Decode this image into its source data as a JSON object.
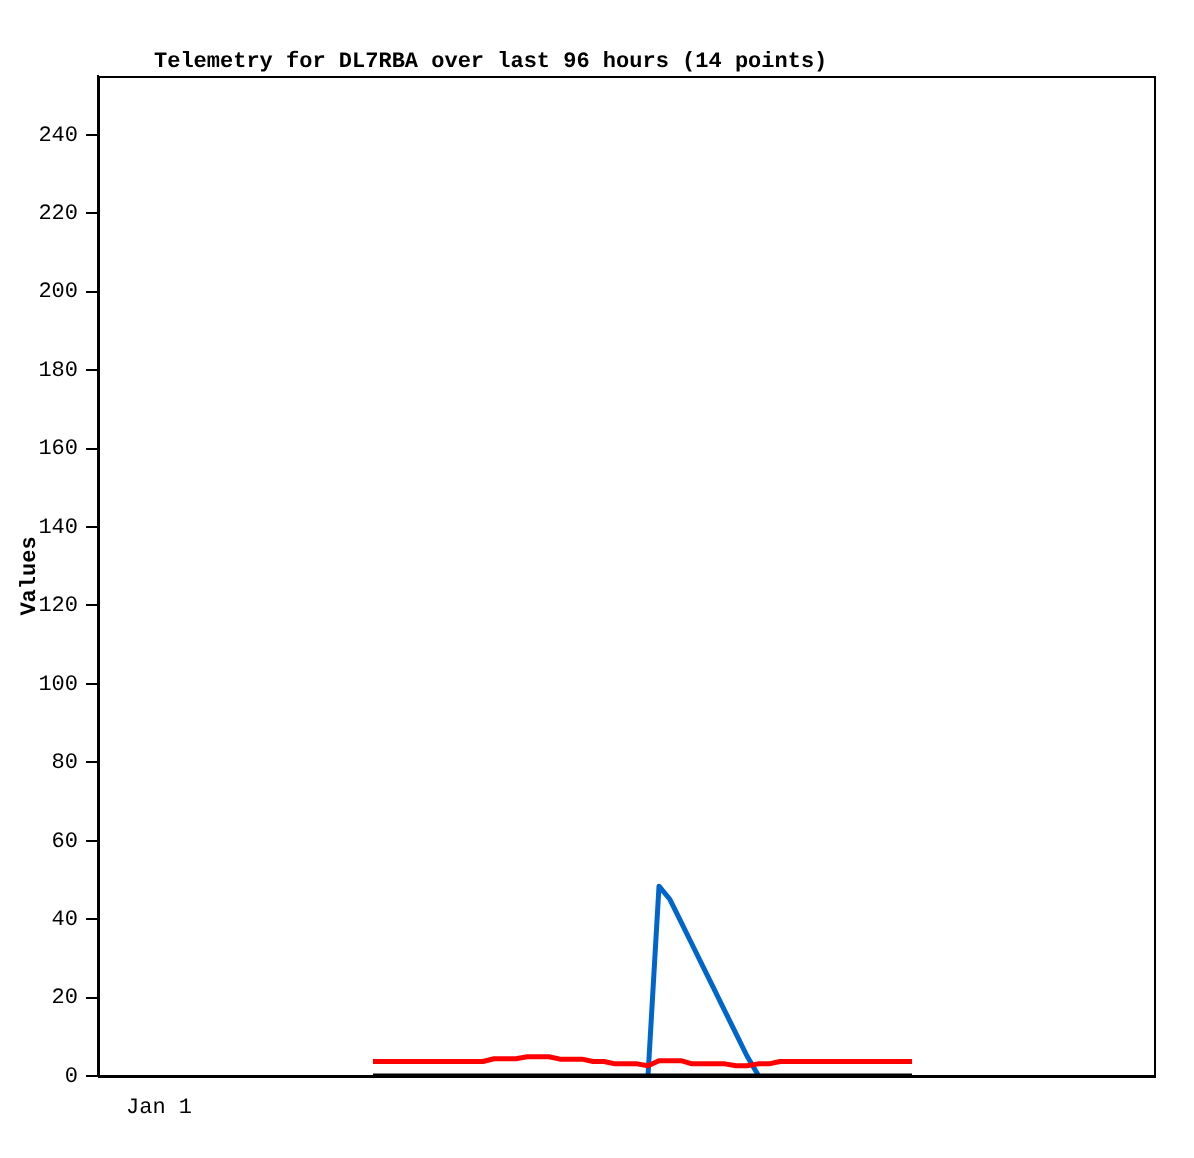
{
  "chart_data": {
    "type": "line",
    "title": "Telemetry for DL7RBA over last 96 hours (14 points)",
    "ylabel": "Values",
    "annotations": [
      "Jan 1"
    ],
    "categories": [
      null,
      null,
      null,
      null,
      null,
      null,
      null,
      null,
      null,
      null,
      null,
      null,
      null,
      null,
      null,
      null,
      null,
      null,
      null,
      null,
      null,
      null,
      null,
      null,
      null,
      null,
      null,
      null,
      null,
      null,
      null,
      null,
      null,
      null,
      null,
      null,
      null,
      null,
      null,
      null,
      null,
      null,
      null,
      null,
      null,
      null,
      null,
      null,
      null,
      null,
      null,
      null,
      null,
      null,
      null,
      null,
      null,
      null,
      null,
      null,
      null,
      null,
      null,
      null,
      null,
      null,
      null,
      null,
      null,
      null,
      null,
      null,
      null,
      null,
      null,
      null,
      null,
      null,
      null,
      null,
      null,
      null,
      null,
      null,
      null,
      null,
      null,
      null,
      null,
      null,
      null,
      null,
      null,
      null,
      null,
      null,
      null
    ],
    "ylim": [
      0,
      255
    ],
    "yticks": [
      0,
      20,
      40,
      60,
      80,
      100,
      120,
      140,
      160,
      180,
      200,
      220,
      240
    ],
    "grid": false,
    "legend": false,
    "marker": "none",
    "line_style": "solid",
    "series": [
      {
        "color": "#000000",
        "values": [
          null,
          null,
          null,
          null,
          null,
          null,
          null,
          null,
          null,
          null,
          null,
          null,
          null,
          null,
          null,
          null,
          null,
          null,
          null,
          null,
          null,
          null,
          null,
          null,
          null,
          0,
          0,
          0,
          0,
          0,
          0,
          0,
          0,
          0,
          0,
          0,
          0,
          0,
          0,
          0,
          0,
          0,
          0,
          0,
          0,
          0,
          0,
          0,
          0,
          0,
          0,
          0,
          0,
          0,
          0,
          0,
          0,
          0,
          0,
          0,
          0,
          0,
          0,
          0,
          0,
          0,
          0,
          0,
          0,
          0,
          0,
          0,
          0,
          0,
          0,
          null,
          null,
          null,
          null,
          null,
          null,
          null,
          null,
          null,
          null,
          null,
          null,
          null,
          null,
          null,
          null,
          null,
          null,
          null,
          null,
          null,
          null
        ]
      },
      {
        "color": "#ff0000",
        "values": [
          null,
          null,
          null,
          null,
          null,
          null,
          null,
          null,
          null,
          null,
          null,
          null,
          null,
          null,
          null,
          null,
          null,
          null,
          null,
          null,
          null,
          null,
          null,
          null,
          null,
          3.7,
          3.7,
          3.7,
          3.7,
          3.7,
          3.7,
          3.7,
          3.7,
          3.7,
          3.7,
          3.7,
          4.4,
          4.4,
          4.4,
          4.9,
          4.9,
          4.9,
          4.3,
          4.3,
          4.3,
          3.7,
          3.7,
          3.1,
          3.1,
          3.1,
          2.6,
          3.9,
          3.9,
          3.9,
          3.1,
          3.1,
          3.1,
          3.1,
          2.6,
          2.6,
          3.1,
          3.1,
          3.7,
          3.7,
          3.7,
          3.7,
          3.7,
          3.7,
          3.7,
          3.7,
          3.7,
          3.7,
          3.7,
          3.7,
          3.7,
          null,
          null,
          null,
          null,
          null,
          null,
          null,
          null,
          null,
          null,
          null,
          null,
          null,
          null,
          null,
          null,
          null,
          null,
          null,
          null,
          null,
          null
        ]
      },
      {
        "color": "#0066cc",
        "values": [
          null,
          null,
          null,
          null,
          null,
          null,
          null,
          null,
          null,
          null,
          null,
          null,
          null,
          null,
          null,
          null,
          null,
          null,
          null,
          null,
          null,
          null,
          null,
          null,
          null,
          null,
          null,
          null,
          null,
          null,
          null,
          null,
          null,
          null,
          null,
          null,
          null,
          null,
          null,
          null,
          null,
          null,
          null,
          null,
          null,
          null,
          null,
          null,
          null,
          null,
          0,
          48.4,
          45,
          39.3,
          33.6,
          27.9,
          22.2,
          16.5,
          10.8,
          5.1,
          0.3,
          null,
          null,
          null,
          null,
          null,
          null,
          null,
          null,
          null,
          null,
          null,
          null,
          null,
          null,
          null,
          null,
          null,
          null,
          null,
          null,
          null,
          null,
          null,
          null,
          null,
          null,
          null,
          null,
          null,
          null,
          null,
          null,
          null,
          null,
          null,
          null
        ]
      }
    ]
  }
}
